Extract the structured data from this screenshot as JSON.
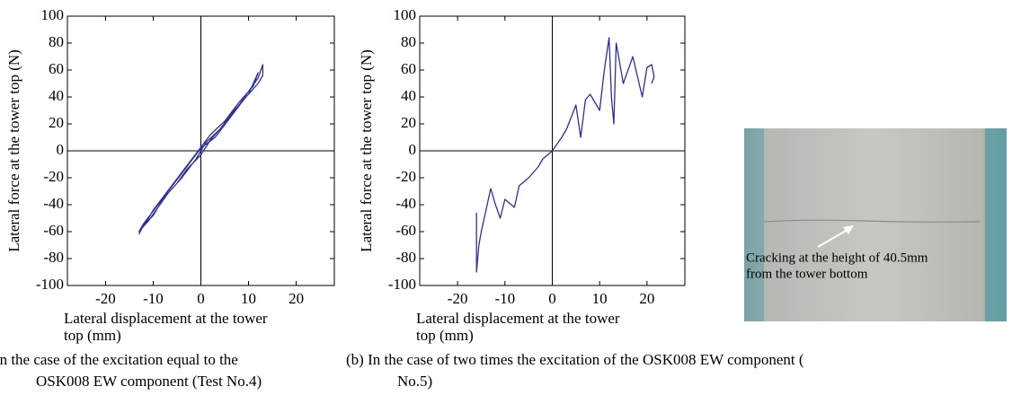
{
  "chart_data": [
    {
      "type": "line",
      "color": "#2e3192",
      "ylabel": "Lateral force at the tower top (N)",
      "xlabel": [
        "Lateral displacement at the tower",
        "top (mm)"
      ],
      "caption": [
        ") In the case of the excitation equal to the",
        "OSK008 EW component (Test No.4)"
      ],
      "xlim": [
        -28,
        28
      ],
      "ylim": [
        -100,
        100
      ],
      "xticks": [
        -20,
        -10,
        0,
        10,
        20
      ],
      "yticks": [
        -100,
        -80,
        -60,
        -40,
        -20,
        0,
        20,
        40,
        60,
        80,
        100
      ],
      "x": [
        -13,
        -12,
        -10,
        -8,
        -5,
        -3,
        0,
        2,
        5,
        8,
        10,
        12,
        13,
        13,
        12,
        9,
        6,
        3,
        0,
        -3,
        -6,
        -9,
        -12,
        -13,
        -11,
        -7,
        -4,
        -1,
        1,
        4,
        7,
        10,
        12,
        11,
        8,
        5,
        2,
        -1,
        -4,
        -7,
        -10,
        -12
      ],
      "values": [
        -62,
        -55,
        -48,
        -36,
        -24,
        -14,
        -3,
        8,
        20,
        34,
        44,
        54,
        64,
        56,
        50,
        38,
        24,
        10,
        2,
        -12,
        -26,
        -40,
        -54,
        -60,
        -52,
        -32,
        -20,
        -6,
        6,
        16,
        30,
        42,
        58,
        48,
        36,
        22,
        12,
        -2,
        -16,
        -30,
        -44,
        -56
      ]
    },
    {
      "type": "line",
      "color": "#2e3192",
      "ylabel": "Lateral force at the tower top (N)",
      "xlabel": [
        "Lateral displacement at the tower",
        "top (mm)"
      ],
      "caption": [
        "(b) In the case of two times the excitation of the OSK008 EW component (",
        "No.5)"
      ],
      "xlim": [
        -28,
        28
      ],
      "ylim": [
        -100,
        100
      ],
      "xticks": [
        -20,
        -10,
        0,
        10,
        20
      ],
      "yticks": [
        -100,
        -80,
        -60,
        -40,
        -20,
        0,
        20,
        40,
        60,
        80,
        100
      ],
      "x": [
        -16,
        -16,
        -15.5,
        -15,
        -13,
        -12,
        -11,
        -10,
        -8,
        -7,
        -5,
        -3,
        -2,
        0,
        2,
        3,
        5,
        6,
        7,
        8,
        10,
        11,
        12,
        12.5,
        13,
        13.5,
        15,
        17,
        19,
        20,
        21,
        21.5,
        21
      ],
      "values": [
        -46,
        -90,
        -70,
        -60,
        -28,
        -40,
        -50,
        -36,
        -42,
        -26,
        -20,
        -12,
        -6,
        0,
        10,
        16,
        34,
        10,
        38,
        42,
        30,
        60,
        84,
        40,
        20,
        80,
        50,
        70,
        40,
        62,
        64,
        55,
        50
      ]
    }
  ],
  "photo": {
    "annotation": [
      "Cracking at the height of 40.5mm",
      "from the tower bottom"
    ]
  }
}
